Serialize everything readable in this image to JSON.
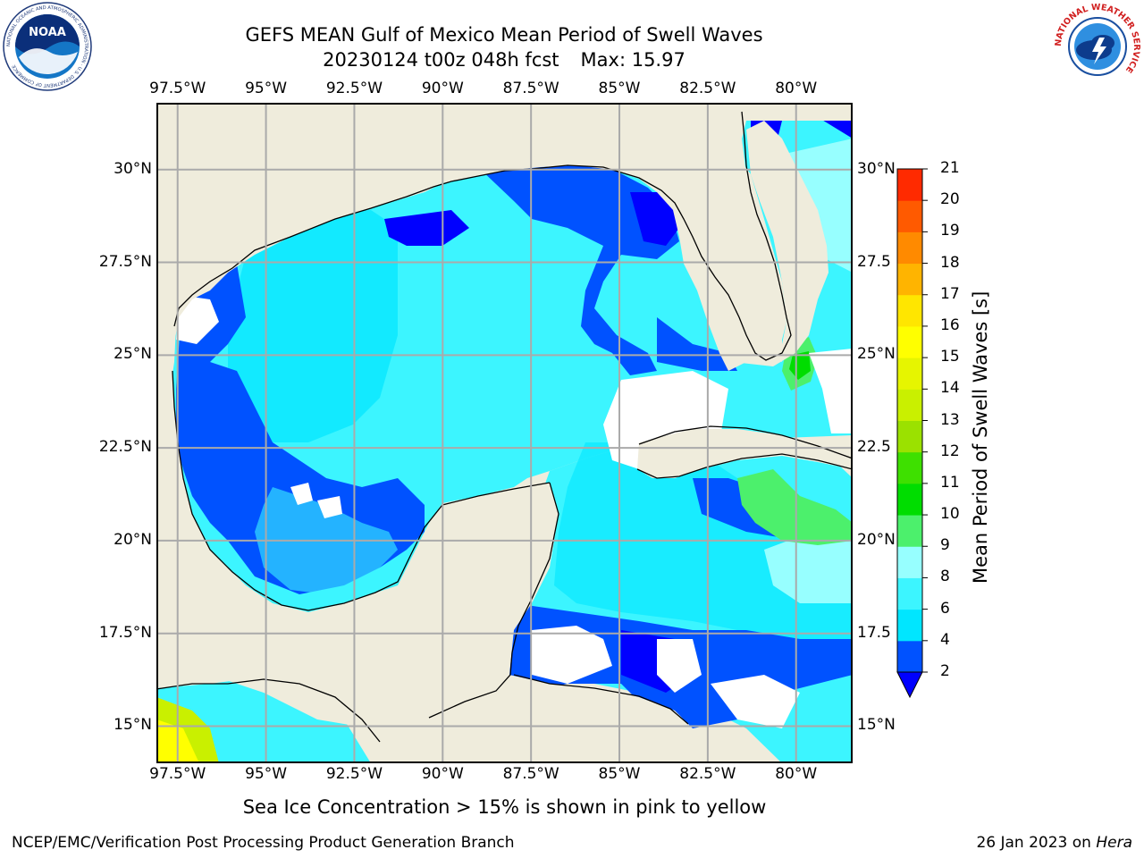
{
  "title": {
    "line1": "GEFS MEAN Gulf of Mexico Mean Period of Swell Waves",
    "line2_run": "20230124 t00z 048h fcst",
    "line2_max": "Max: 15.97"
  },
  "map": {
    "region": "Gulf of Mexico",
    "lon_range": [
      -98.1,
      -78.4
    ],
    "lat_range": [
      14.0,
      31.8
    ],
    "lon_ticks": [
      "97.5°W",
      "95°W",
      "92.5°W",
      "90°W",
      "87.5°W",
      "85°W",
      "82.5°W",
      "80°W"
    ],
    "lat_ticks_left": [
      "30°N",
      "27.5°N",
      "25°N",
      "22.5°N",
      "20°N",
      "17.5°N",
      "15°N"
    ],
    "lat_ticks_right": [
      "30°N",
      "27.5",
      "25°N",
      "22.5",
      "20°N",
      "17.5",
      "15°N"
    ],
    "gridlines": true,
    "colors": {
      "land": "#efecdc",
      "no_data": "#ffffff",
      "grid": "#aaaaaa"
    }
  },
  "colorbar": {
    "label": "Mean Period of Swell Waves [s]",
    "ticks": [
      "2",
      "4",
      "6",
      "8",
      "9",
      "10",
      "11",
      "12",
      "13",
      "14",
      "15",
      "16",
      "17",
      "18",
      "19",
      "20",
      "21"
    ],
    "colors": [
      "#0052ff",
      "#00e6ff",
      "#3cf5ff",
      "#97ffff",
      "#4cf06c",
      "#00dd00",
      "#3ee000",
      "#9be100",
      "#c9f000",
      "#e6f500",
      "#ffff00",
      "#ffe600",
      "#ffb400",
      "#ff8a00",
      "#ff5a00",
      "#ff2a00"
    ],
    "under_color": "#0000ff"
  },
  "annotation": "Sea Ice Concentration > 15% is shown in pink to yellow",
  "footer": {
    "left": "NCEP/EMC/Verification Post Processing Product Generation Branch",
    "right_date": "26 Jan 2023 on ",
    "right_host": "Hera"
  },
  "logos": {
    "noaa": {
      "text": "NOAA",
      "ring": "NATIONAL OCEANIC AND ATMOSPHERIC ADMINISTRATION · U.S. DEPARTMENT OF COMMERCE",
      "icon": "noaa-logo"
    },
    "nws": {
      "ring": "NATIONAL WEATHER SERVICE",
      "icon": "nws-logo"
    }
  }
}
